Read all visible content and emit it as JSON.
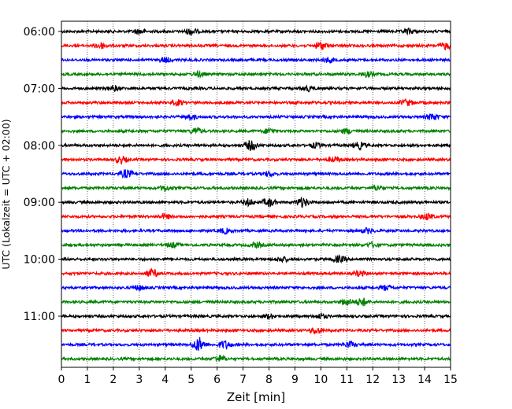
{
  "chart_data": {
    "type": "line",
    "title": "",
    "xlabel": "Zeit  [min]",
    "ylabel": "UTC (Lokalzeit = UTC + 02:00)",
    "xlim": [
      0,
      15
    ],
    "x_ticks": [
      "0",
      "1",
      "2",
      "3",
      "4",
      "5",
      "6",
      "7",
      "8",
      "9",
      "10",
      "11",
      "12",
      "13",
      "14",
      "15"
    ],
    "y_ticks": [
      "06:00",
      "07:00",
      "08:00",
      "09:00",
      "10:00",
      "11:00"
    ],
    "y_tick_rows": [
      0,
      4,
      8,
      12,
      16,
      20
    ],
    "grid": "vertical dotted at each minute",
    "trace_interval_min": 15,
    "trace_colors": [
      "#000000",
      "#ff0000",
      "#0000ff",
      "#008000"
    ],
    "series": [
      {
        "start": "06:00",
        "color": "#000000",
        "events": [
          {
            "t": 3.0,
            "amp": 3
          },
          {
            "t": 5.0,
            "amp": 4
          },
          {
            "t": 13.4,
            "amp": 3
          }
        ]
      },
      {
        "start": "06:15",
        "color": "#ff0000",
        "events": [
          {
            "t": 1.5,
            "amp": 4
          },
          {
            "t": 10.0,
            "amp": 5
          },
          {
            "t": 14.8,
            "amp": 4
          }
        ]
      },
      {
        "start": "06:30",
        "color": "#0000ff",
        "events": [
          {
            "t": 4.0,
            "amp": 3
          },
          {
            "t": 10.3,
            "amp": 3
          }
        ]
      },
      {
        "start": "06:45",
        "color": "#008000",
        "events": [
          {
            "t": 5.3,
            "amp": 3
          },
          {
            "t": 11.8,
            "amp": 3
          }
        ]
      },
      {
        "start": "07:00",
        "color": "#000000",
        "events": [
          {
            "t": 2.0,
            "amp": 3
          },
          {
            "t": 9.5,
            "amp": 3
          }
        ]
      },
      {
        "start": "07:15",
        "color": "#ff0000",
        "events": [
          {
            "t": 4.5,
            "amp": 3
          },
          {
            "t": 13.3,
            "amp": 4
          }
        ]
      },
      {
        "start": "07:30",
        "color": "#0000ff",
        "events": [
          {
            "t": 5.0,
            "amp": 3
          },
          {
            "t": 14.3,
            "amp": 4
          }
        ]
      },
      {
        "start": "07:45",
        "color": "#008000",
        "events": [
          {
            "t": 5.2,
            "amp": 4
          },
          {
            "t": 8.0,
            "amp": 3
          },
          {
            "t": 11.0,
            "amp": 3
          }
        ]
      },
      {
        "start": "08:00",
        "color": "#000000",
        "events": [
          {
            "t": 7.3,
            "amp": 6
          },
          {
            "t": 9.8,
            "amp": 3
          },
          {
            "t": 11.5,
            "amp": 4
          }
        ]
      },
      {
        "start": "08:15",
        "color": "#ff0000",
        "events": [
          {
            "t": 2.3,
            "amp": 4
          },
          {
            "t": 10.5,
            "amp": 3
          }
        ]
      },
      {
        "start": "08:30",
        "color": "#0000ff",
        "events": [
          {
            "t": 2.5,
            "amp": 5
          },
          {
            "t": 8.0,
            "amp": 3
          }
        ]
      },
      {
        "start": "08:45",
        "color": "#008000",
        "events": [
          {
            "t": 4.0,
            "amp": 3
          },
          {
            "t": 12.2,
            "amp": 3
          }
        ]
      },
      {
        "start": "09:00",
        "color": "#000000",
        "events": [
          {
            "t": 7.2,
            "amp": 4
          },
          {
            "t": 8.0,
            "amp": 5
          },
          {
            "t": 9.3,
            "amp": 6
          }
        ]
      },
      {
        "start": "09:15",
        "color": "#ff0000",
        "events": [
          {
            "t": 4.0,
            "amp": 3
          },
          {
            "t": 14.1,
            "amp": 4
          }
        ]
      },
      {
        "start": "09:30",
        "color": "#0000ff",
        "events": [
          {
            "t": 6.3,
            "amp": 3
          },
          {
            "t": 11.8,
            "amp": 3
          }
        ]
      },
      {
        "start": "09:45",
        "color": "#008000",
        "events": [
          {
            "t": 4.3,
            "amp": 3
          },
          {
            "t": 7.5,
            "amp": 3
          },
          {
            "t": 12.0,
            "amp": 3
          }
        ]
      },
      {
        "start": "10:00",
        "color": "#000000",
        "events": [
          {
            "t": 10.7,
            "amp": 4
          },
          {
            "t": 8.5,
            "amp": 3
          }
        ]
      },
      {
        "start": "10:15",
        "color": "#ff0000",
        "events": [
          {
            "t": 3.5,
            "amp": 5
          },
          {
            "t": 11.5,
            "amp": 3
          }
        ]
      },
      {
        "start": "10:30",
        "color": "#0000ff",
        "events": [
          {
            "t": 3.0,
            "amp": 3
          },
          {
            "t": 12.5,
            "amp": 3
          }
        ]
      },
      {
        "start": "10:45",
        "color": "#008000",
        "events": [
          {
            "t": 11.0,
            "amp": 4
          },
          {
            "t": 11.6,
            "amp": 5
          }
        ]
      },
      {
        "start": "11:00",
        "color": "#000000",
        "events": [
          {
            "t": 8.0,
            "amp": 3
          },
          {
            "t": 10.0,
            "amp": 3
          }
        ]
      },
      {
        "start": "11:15",
        "color": "#ff0000",
        "events": [
          {
            "t": 9.8,
            "amp": 4
          }
        ]
      },
      {
        "start": "11:30",
        "color": "#0000ff",
        "events": [
          {
            "t": 5.3,
            "amp": 9
          },
          {
            "t": 6.3,
            "amp": 5
          },
          {
            "t": 11.1,
            "amp": 4
          }
        ]
      },
      {
        "start": "11:45",
        "color": "#008000",
        "events": [
          {
            "t": 6.1,
            "amp": 4
          }
        ]
      }
    ]
  }
}
